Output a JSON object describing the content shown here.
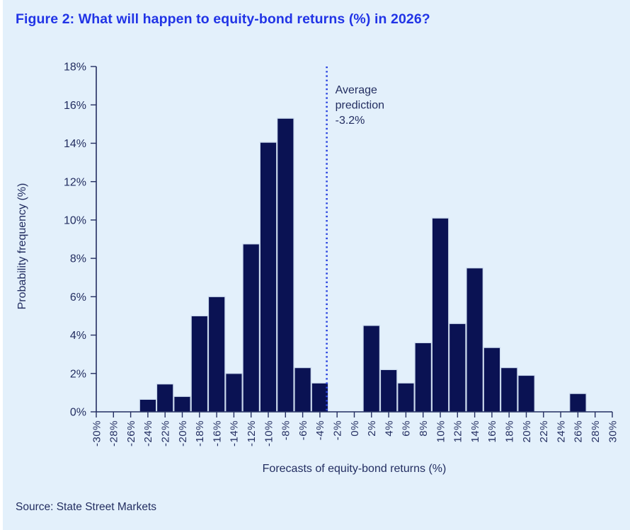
{
  "title": "Figure 2: What will happen to equity-bond returns (%) in 2026?",
  "source": "Source: State Street Markets",
  "chart_data": {
    "type": "bar",
    "title": "Figure 2: What will happen to equity-bond returns (%) in 2026?",
    "xlabel": "Forecasts of equity-bond returns (%)",
    "ylabel": "Probability frequency (%)",
    "categories": [
      "-30%",
      "-28%",
      "-26%",
      "-24%",
      "-22%",
      "-20%",
      "-18%",
      "-16%",
      "-14%",
      "-12%",
      "-10%",
      "-8%",
      "-6%",
      "-4%",
      "-2%",
      "0%",
      "2%",
      "4%",
      "6%",
      "8%",
      "10%",
      "12%",
      "14%",
      "16%",
      "18%",
      "20%",
      "22%",
      "24%",
      "26%",
      "28%",
      "30%"
    ],
    "category_values": [
      -30,
      -28,
      -26,
      -24,
      -22,
      -20,
      -18,
      -16,
      -14,
      -12,
      -10,
      -8,
      -6,
      -4,
      -2,
      0,
      2,
      4,
      6,
      8,
      10,
      12,
      14,
      16,
      18,
      20,
      22,
      24,
      26,
      28,
      30
    ],
    "values": [
      0,
      0,
      0,
      0.65,
      1.45,
      0.8,
      5.0,
      6.0,
      2.0,
      8.75,
      14.05,
      15.3,
      2.3,
      1.5,
      0,
      0,
      4.5,
      2.2,
      1.5,
      3.6,
      10.1,
      4.6,
      7.5,
      3.35,
      2.3,
      1.9,
      0,
      0,
      0.95,
      0,
      0
    ],
    "ylim": [
      0,
      18
    ],
    "ytick_step": 2,
    "ytick_labels": [
      "0%",
      "2%",
      "4%",
      "6%",
      "8%",
      "10%",
      "12%",
      "14%",
      "16%",
      "18%"
    ],
    "grid": false,
    "legend": null,
    "annotation": {
      "lines": [
        "Average",
        "prediction",
        "-3.2%"
      ],
      "line_value": -3.2
    },
    "colors": {
      "background": "#e3f0fb",
      "bar_fill": "#0a1253",
      "bar_stroke": "#c9d8ec",
      "axis": "#232e61",
      "text": "#232e61",
      "title": "#2134e6",
      "average_line": "#2b44e0"
    }
  }
}
